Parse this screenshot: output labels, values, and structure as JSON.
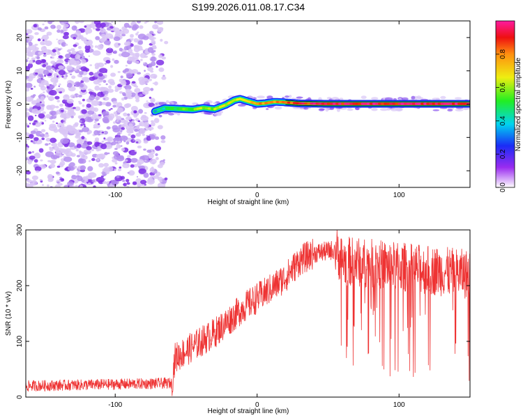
{
  "title": "S199.2026.011.08.17.C34",
  "chart_data": [
    {
      "type": "heatmap",
      "xlabel": "Height of straight line (km)",
      "ylabel": "Frequency (Hz)",
      "xlim": [
        -163,
        150
      ],
      "ylim": [
        -25,
        25
      ],
      "xticks": [
        -100,
        0,
        100
      ],
      "yticks": [
        -20,
        -10,
        0,
        10,
        20
      ],
      "colorbar": {
        "label": "Normalized spectral amplitude",
        "range": [
          0,
          1
        ],
        "ticks": [
          0.0,
          0.2,
          0.4,
          0.6,
          0.8
        ]
      },
      "ridge": {
        "start_km": -72,
        "x": [
          -72,
          -65,
          -55,
          -45,
          -38,
          -30,
          -22,
          -16,
          -12,
          -6,
          0,
          6,
          12,
          18,
          30,
          50,
          80,
          150
        ],
        "y": [
          -2.2,
          -1.2,
          -1.4,
          -1.6,
          -1.1,
          -1.5,
          -0.2,
          1.2,
          1.6,
          0.8,
          0.1,
          0.3,
          0.7,
          0.6,
          0.2,
          0.1,
          0.1,
          0.1
        ],
        "amplitude_x": [
          -72,
          -50,
          -20,
          0,
          20,
          40,
          150
        ],
        "amplitude": [
          0.35,
          0.55,
          0.65,
          0.75,
          0.85,
          0.92,
          0.95
        ]
      }
    },
    {
      "type": "line",
      "xlabel": "Height of straight line (km)",
      "ylabel": "SNR (10 * v/v)",
      "xlim": [
        -163,
        150
      ],
      "ylim": [
        0,
        300
      ],
      "xticks": [
        -100,
        0,
        100
      ],
      "yticks": [
        0,
        100,
        200,
        300
      ],
      "series": [
        {
          "color": "#ee3333",
          "trend_x": [
            -163,
            -60,
            -58,
            -30,
            -10,
            10,
            20,
            30,
            40,
            50,
            55,
            60,
            150
          ],
          "trend_y": [
            20,
            25,
            70,
            115,
            160,
            195,
            215,
            245,
            258,
            262,
            265,
            245,
            220
          ]
        }
      ]
    }
  ]
}
